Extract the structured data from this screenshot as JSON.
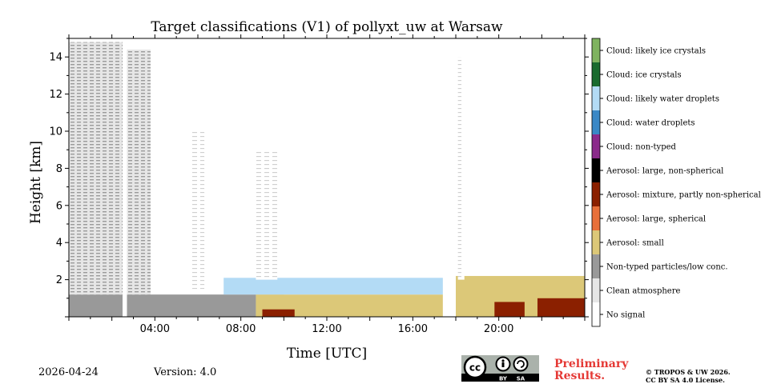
{
  "chart_data": {
    "type": "heatmap",
    "title": "Target classifications (V1) of pollyxt_uw at Warsaw",
    "xlabel": "Time [UTC]",
    "ylabel": "Height [km]",
    "x_range_hours": [
      0,
      24
    ],
    "y_range_km": [
      0,
      15
    ],
    "x_ticks": [
      {
        "value": 4,
        "label": "04:00"
      },
      {
        "value": 8,
        "label": "08:00"
      },
      {
        "value": 12,
        "label": "12:00"
      },
      {
        "value": 16,
        "label": "16:00"
      },
      {
        "value": 20,
        "label": "20:00"
      }
    ],
    "y_ticks": [
      {
        "value": 2,
        "label": "2"
      },
      {
        "value": 4,
        "label": "4"
      },
      {
        "value": 6,
        "label": "6"
      },
      {
        "value": 8,
        "label": "8"
      },
      {
        "value": 10,
        "label": "10"
      },
      {
        "value": 12,
        "label": "12"
      },
      {
        "value": 14,
        "label": "14"
      }
    ],
    "classes": [
      {
        "label": "Cloud: likely ice crystals",
        "color": "#7fb35f"
      },
      {
        "label": "Cloud: ice crystals",
        "color": "#1a6b2e"
      },
      {
        "label": "Cloud: likely water droplets",
        "color": "#b3dbf5"
      },
      {
        "label": "Cloud: water droplets",
        "color": "#3a88c6"
      },
      {
        "label": "Cloud: non-typed",
        "color": "#8b2a8b"
      },
      {
        "label": "Aerosol: large, non-spherical",
        "color": "#000000"
      },
      {
        "label": "Aerosol: mixture, partly non-spherical",
        "color": "#8b2000"
      },
      {
        "label": "Aerosol: large, spherical",
        "color": "#e8703a"
      },
      {
        "label": "Aerosol: small",
        "color": "#dcc878"
      },
      {
        "label": "Non-typed particles/low conc.",
        "color": "#999999"
      },
      {
        "label": "Clean atmosphere",
        "color": "#e6e6e6"
      },
      {
        "label": "No signal",
        "color": "#ffffff"
      }
    ],
    "regions": [
      {
        "class": "Non-typed particles/low conc.",
        "t": [
          0,
          2.5
        ],
        "h": [
          0,
          1.2
        ]
      },
      {
        "class": "Non-typed particles/low conc.",
        "t": [
          2.7,
          8.7
        ],
        "h": [
          0,
          1.2
        ]
      },
      {
        "class": "Non-typed particles/low conc.",
        "t": [
          8.7,
          10
        ],
        "h": [
          1.2,
          2.0
        ]
      },
      {
        "class": "Aerosol: small",
        "t": [
          8.7,
          17.4
        ],
        "h": [
          0,
          1.2
        ]
      },
      {
        "class": "Aerosol: small",
        "t": [
          18.0,
          24
        ],
        "h": [
          0,
          2.2
        ]
      },
      {
        "class": "Aerosol: mixture, partly non-spherical",
        "t": [
          9.0,
          10.5
        ],
        "h": [
          0,
          0.4
        ]
      },
      {
        "class": "Aerosol: mixture, partly non-spherical",
        "t": [
          19.8,
          21.2
        ],
        "h": [
          0,
          0.8
        ]
      },
      {
        "class": "Aerosol: mixture, partly non-spherical",
        "t": [
          21.8,
          24
        ],
        "h": [
          0,
          1.0
        ]
      },
      {
        "class": "Cloud: likely water droplets",
        "t": [
          7.2,
          17.4
        ],
        "h": [
          1.2,
          2.1
        ]
      },
      {
        "class": "Clean atmosphere",
        "t": [
          0,
          2.5
        ],
        "h": [
          1.2,
          14.8
        ]
      },
      {
        "class": "Clean atmosphere",
        "t": [
          2.7,
          3.8
        ],
        "h": [
          1.2,
          14.4
        ]
      },
      {
        "class": "Clean atmosphere",
        "t": [
          18.1,
          18.4
        ],
        "h": [
          2.0,
          14.0
        ]
      },
      {
        "class": "Clean atmosphere",
        "t": [
          8.7,
          9.7
        ],
        "h": [
          2.0,
          9.0
        ]
      },
      {
        "class": "Clean atmosphere",
        "t": [
          5.7,
          6.3
        ],
        "h": [
          1.5,
          10.0
        ]
      }
    ],
    "date": "2026-04-24",
    "version_text": "Version: 4.0",
    "notice": [
      "Preliminary",
      "Results."
    ],
    "copyright": [
      "© TROPOS & UW 2026.",
      "CC BY SA 4.0 License."
    ],
    "cc_badge": {
      "main": "cc",
      "left": "BY",
      "right": "SA"
    }
  }
}
